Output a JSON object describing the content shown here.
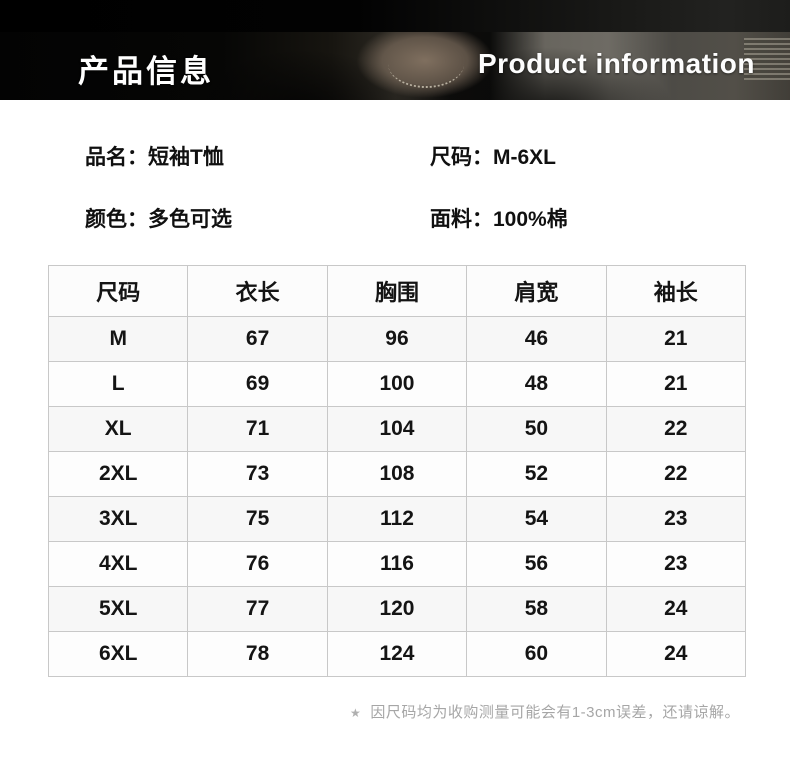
{
  "header": {
    "title_zh": "产品信息",
    "title_en": "Product information"
  },
  "details": [
    {
      "label": "品名：",
      "value": "短袖T恤"
    },
    {
      "label": "尺码：",
      "value": "M-6XL"
    },
    {
      "label": "颜色：",
      "value": "多色可选"
    },
    {
      "label": "面料：",
      "value": "100%棉"
    }
  ],
  "size_table": {
    "columns": [
      "尺码",
      "衣长",
      "胸围",
      "肩宽",
      "袖长"
    ],
    "rows": [
      [
        "M",
        "67",
        "96",
        "46",
        "21"
      ],
      [
        "L",
        "69",
        "100",
        "48",
        "21"
      ],
      [
        "XL",
        "71",
        "104",
        "50",
        "22"
      ],
      [
        "2XL",
        "73",
        "108",
        "52",
        "22"
      ],
      [
        "3XL",
        "75",
        "112",
        "54",
        "23"
      ],
      [
        "4XL",
        "76",
        "116",
        "56",
        "23"
      ],
      [
        "5XL",
        "77",
        "120",
        "58",
        "24"
      ],
      [
        "6XL",
        "78",
        "124",
        "60",
        "24"
      ]
    ]
  },
  "footnote": {
    "marker": "★",
    "text": "因尺码均为收购测量可能会有1-3cm误差，还请谅解。"
  },
  "colors": {
    "page_background": "#ffffff",
    "table_border": "#c8c8c8",
    "body_text": "#111111",
    "note_text": "#a6a6a6",
    "hero_text": "#ffffff"
  }
}
